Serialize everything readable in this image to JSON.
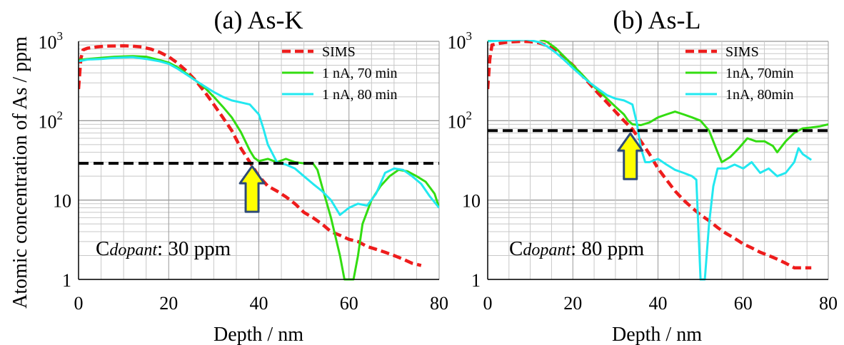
{
  "figure": {
    "ylabel": "Atomic concentration of As / ppm",
    "ytick_labels": [
      "1",
      "10",
      "10",
      "10"
    ],
    "ytick_exponents": [
      "",
      "",
      "2",
      "3"
    ]
  },
  "chart_data": [
    {
      "type": "line",
      "title": "(a) As-K",
      "xlabel": "Depth / nm",
      "ylabel": "Atomic concentration of As / ppm",
      "xlim": [
        0,
        80
      ],
      "ylim": [
        1,
        1000
      ],
      "yscale": "log",
      "grid": true,
      "legend_position": "top-right",
      "xtick_labels": [
        "0",
        "20",
        "40",
        "60",
        "80"
      ],
      "annotation": {
        "prefix": "C",
        "subscript": "dopant",
        "value": ": 30 ppm"
      },
      "threshold": 29,
      "arrow_x": 38.5,
      "colors": {
        "SIMS": "#ee1c1c",
        "1 nA, 70 min": "#33dd11",
        "1 nA, 80 min": "#22e8f0",
        "threshold": "#000000",
        "arrow": "#ffff00"
      },
      "series": [
        {
          "name": "SIMS",
          "points": [
            [
              0,
              250
            ],
            [
              0.5,
              600
            ],
            [
              1,
              780
            ],
            [
              2,
              820
            ],
            [
              4,
              850
            ],
            [
              6,
              870
            ],
            [
              8,
              875
            ],
            [
              10,
              880
            ],
            [
              12,
              870
            ],
            [
              14,
              850
            ],
            [
              16,
              800
            ],
            [
              18,
              730
            ],
            [
              20,
              640
            ],
            [
              22,
              530
            ],
            [
              24,
              420
            ],
            [
              26,
              320
            ],
            [
              28,
              230
            ],
            [
              30,
              160
            ],
            [
              32,
              110
            ],
            [
              34,
              75
            ],
            [
              36,
              45
            ],
            [
              38,
              30
            ],
            [
              40,
              20
            ],
            [
              42,
              15
            ],
            [
              44,
              13
            ],
            [
              46,
              11
            ],
            [
              48,
              9
            ],
            [
              50,
              7
            ],
            [
              52,
              6
            ],
            [
              54,
              5
            ],
            [
              56,
              4
            ],
            [
              58,
              3.6
            ],
            [
              60,
              3.2
            ],
            [
              62,
              3
            ],
            [
              64,
              2.6
            ],
            [
              66,
              2.4
            ],
            [
              68,
              2.2
            ],
            [
              70,
              2
            ],
            [
              72,
              1.8
            ],
            [
              74,
              1.6
            ],
            [
              76,
              1.5
            ]
          ]
        },
        {
          "name": "1 nA, 70 min",
          "points": [
            [
              0,
              580
            ],
            [
              2,
              600
            ],
            [
              5,
              620
            ],
            [
              8,
              640
            ],
            [
              12,
              650
            ],
            [
              15,
              640
            ],
            [
              18,
              580
            ],
            [
              20,
              540
            ],
            [
              22,
              470
            ],
            [
              24,
              390
            ],
            [
              26,
              320
            ],
            [
              28,
              260
            ],
            [
              30,
              200
            ],
            [
              32,
              150
            ],
            [
              34,
              110
            ],
            [
              36,
              72
            ],
            [
              38,
              42
            ],
            [
              39,
              34
            ],
            [
              40,
              31
            ],
            [
              42,
              33
            ],
            [
              44,
              30
            ],
            [
              46,
              33
            ],
            [
              48,
              30
            ],
            [
              50,
              29
            ],
            [
              52,
              29
            ],
            [
              53,
              24
            ],
            [
              54,
              15
            ],
            [
              56,
              6
            ],
            [
              58,
              2
            ],
            [
              59,
              1
            ],
            [
              61,
              1
            ],
            [
              62,
              2
            ],
            [
              63,
              5
            ],
            [
              65,
              10
            ],
            [
              67,
              15
            ],
            [
              69,
              20
            ],
            [
              71,
              24
            ],
            [
              73,
              23
            ],
            [
              75,
              20
            ],
            [
              77,
              17
            ],
            [
              79,
              12
            ],
            [
              80,
              8
            ]
          ]
        },
        {
          "name": "1 nA, 80 min",
          "points": [
            [
              0,
              560
            ],
            [
              2,
              590
            ],
            [
              5,
              600
            ],
            [
              8,
              620
            ],
            [
              12,
              630
            ],
            [
              15,
              600
            ],
            [
              18,
              560
            ],
            [
              20,
              520
            ],
            [
              22,
              450
            ],
            [
              24,
              380
            ],
            [
              26,
              320
            ],
            [
              28,
              270
            ],
            [
              30,
              230
            ],
            [
              32,
              200
            ],
            [
              34,
              180
            ],
            [
              36,
              170
            ],
            [
              38,
              160
            ],
            [
              40,
              120
            ],
            [
              41,
              80
            ],
            [
              42,
              50
            ],
            [
              44,
              30
            ],
            [
              46,
              28
            ],
            [
              48,
              25
            ],
            [
              50,
              20
            ],
            [
              52,
              16
            ],
            [
              54,
              13
            ],
            [
              56,
              10
            ],
            [
              58,
              6.5
            ],
            [
              60,
              8
            ],
            [
              62,
              9
            ],
            [
              64,
              8.5
            ],
            [
              66,
              12
            ],
            [
              68,
              22
            ],
            [
              70,
              25
            ],
            [
              72,
              24
            ],
            [
              74,
              20
            ],
            [
              76,
              16
            ],
            [
              78,
              11
            ],
            [
              80,
              8
            ]
          ]
        }
      ]
    },
    {
      "type": "line",
      "title": "(b) As-L",
      "xlabel": "Depth / nm",
      "ylabel": "",
      "xlim": [
        0,
        80
      ],
      "ylim": [
        1,
        1000
      ],
      "yscale": "log",
      "grid": true,
      "legend_position": "top-right",
      "xtick_labels": [
        "0",
        "20",
        "40",
        "60",
        "80"
      ],
      "annotation": {
        "prefix": "C",
        "subscript": "dopant",
        "value": ": 80 ppm"
      },
      "threshold": 75,
      "arrow_x": 33.5,
      "colors": {
        "SIMS": "#ee1c1c",
        "1nA, 70min": "#33dd11",
        "1nA, 80min": "#22e8f0",
        "threshold": "#000000",
        "arrow": "#ffff00"
      },
      "series": [
        {
          "name": "SIMS",
          "points": [
            [
              0,
              250
            ],
            [
              0.5,
              600
            ],
            [
              1,
              900
            ],
            [
              3,
              950
            ],
            [
              5,
              980
            ],
            [
              8,
              1000
            ],
            [
              10,
              990
            ],
            [
              12,
              960
            ],
            [
              14,
              880
            ],
            [
              16,
              760
            ],
            [
              18,
              620
            ],
            [
              20,
              500
            ],
            [
              22,
              380
            ],
            [
              24,
              290
            ],
            [
              26,
              220
            ],
            [
              28,
              170
            ],
            [
              30,
              130
            ],
            [
              32,
              100
            ],
            [
              34,
              78
            ],
            [
              36,
              55
            ],
            [
              38,
              38
            ],
            [
              40,
              25
            ],
            [
              42,
              18
            ],
            [
              44,
              13
            ],
            [
              46,
              10
            ],
            [
              48,
              8
            ],
            [
              50,
              6.5
            ],
            [
              52,
              5.5
            ],
            [
              54,
              4.5
            ],
            [
              56,
              3.8
            ],
            [
              58,
              3.3
            ],
            [
              60,
              2.8
            ],
            [
              62,
              2.5
            ],
            [
              64,
              2.2
            ],
            [
              66,
              2
            ],
            [
              68,
              1.8
            ],
            [
              70,
              1.6
            ],
            [
              72,
              1.4
            ],
            [
              74,
              1.4
            ],
            [
              76,
              1.4
            ]
          ]
        },
        {
          "name": "1nA, 70min",
          "points": [
            [
              0,
              1050
            ],
            [
              3,
              1080
            ],
            [
              6,
              1100
            ],
            [
              9,
              1120
            ],
            [
              12,
              1080
            ],
            [
              14,
              980
            ],
            [
              16,
              820
            ],
            [
              18,
              640
            ],
            [
              20,
              500
            ],
            [
              22,
              390
            ],
            [
              24,
              300
            ],
            [
              26,
              240
            ],
            [
              28,
              190
            ],
            [
              30,
              150
            ],
            [
              32,
              120
            ],
            [
              33,
              100
            ],
            [
              34,
              90
            ],
            [
              36,
              88
            ],
            [
              38,
              95
            ],
            [
              40,
              110
            ],
            [
              42,
              120
            ],
            [
              44,
              130
            ],
            [
              46,
              120
            ],
            [
              48,
              110
            ],
            [
              50,
              100
            ],
            [
              52,
              75
            ],
            [
              54,
              40
            ],
            [
              55,
              30
            ],
            [
              57,
              35
            ],
            [
              59,
              45
            ],
            [
              61,
              60
            ],
            [
              63,
              55
            ],
            [
              65,
              55
            ],
            [
              67,
              48
            ],
            [
              68,
              40
            ],
            [
              70,
              55
            ],
            [
              72,
              70
            ],
            [
              74,
              80
            ],
            [
              76,
              82
            ],
            [
              78,
              85
            ],
            [
              80,
              90
            ]
          ]
        },
        {
          "name": "1nA, 80min",
          "points": [
            [
              0,
              1000
            ],
            [
              3,
              1020
            ],
            [
              6,
              1040
            ],
            [
              9,
              1060
            ],
            [
              12,
              980
            ],
            [
              14,
              860
            ],
            [
              16,
              720
            ],
            [
              18,
              580
            ],
            [
              20,
              460
            ],
            [
              22,
              370
            ],
            [
              24,
              300
            ],
            [
              26,
              250
            ],
            [
              28,
              210
            ],
            [
              30,
              190
            ],
            [
              32,
              180
            ],
            [
              33,
              170
            ],
            [
              34,
              160
            ],
            [
              35,
              95
            ],
            [
              36,
              45
            ],
            [
              37,
              30
            ],
            [
              38,
              30
            ],
            [
              40,
              33
            ],
            [
              42,
              28
            ],
            [
              44,
              24
            ],
            [
              46,
              22
            ],
            [
              48,
              20
            ],
            [
              49,
              18
            ],
            [
              50,
              1
            ],
            [
              51,
              1
            ],
            [
              52,
              5
            ],
            [
              53,
              15
            ],
            [
              54,
              25
            ],
            [
              56,
              25
            ],
            [
              58,
              28
            ],
            [
              60,
              25
            ],
            [
              62,
              30
            ],
            [
              64,
              22
            ],
            [
              66,
              25
            ],
            [
              68,
              20
            ],
            [
              70,
              22
            ],
            [
              72,
              30
            ],
            [
              73,
              45
            ],
            [
              74,
              38
            ],
            [
              76,
              32
            ]
          ]
        }
      ]
    }
  ]
}
